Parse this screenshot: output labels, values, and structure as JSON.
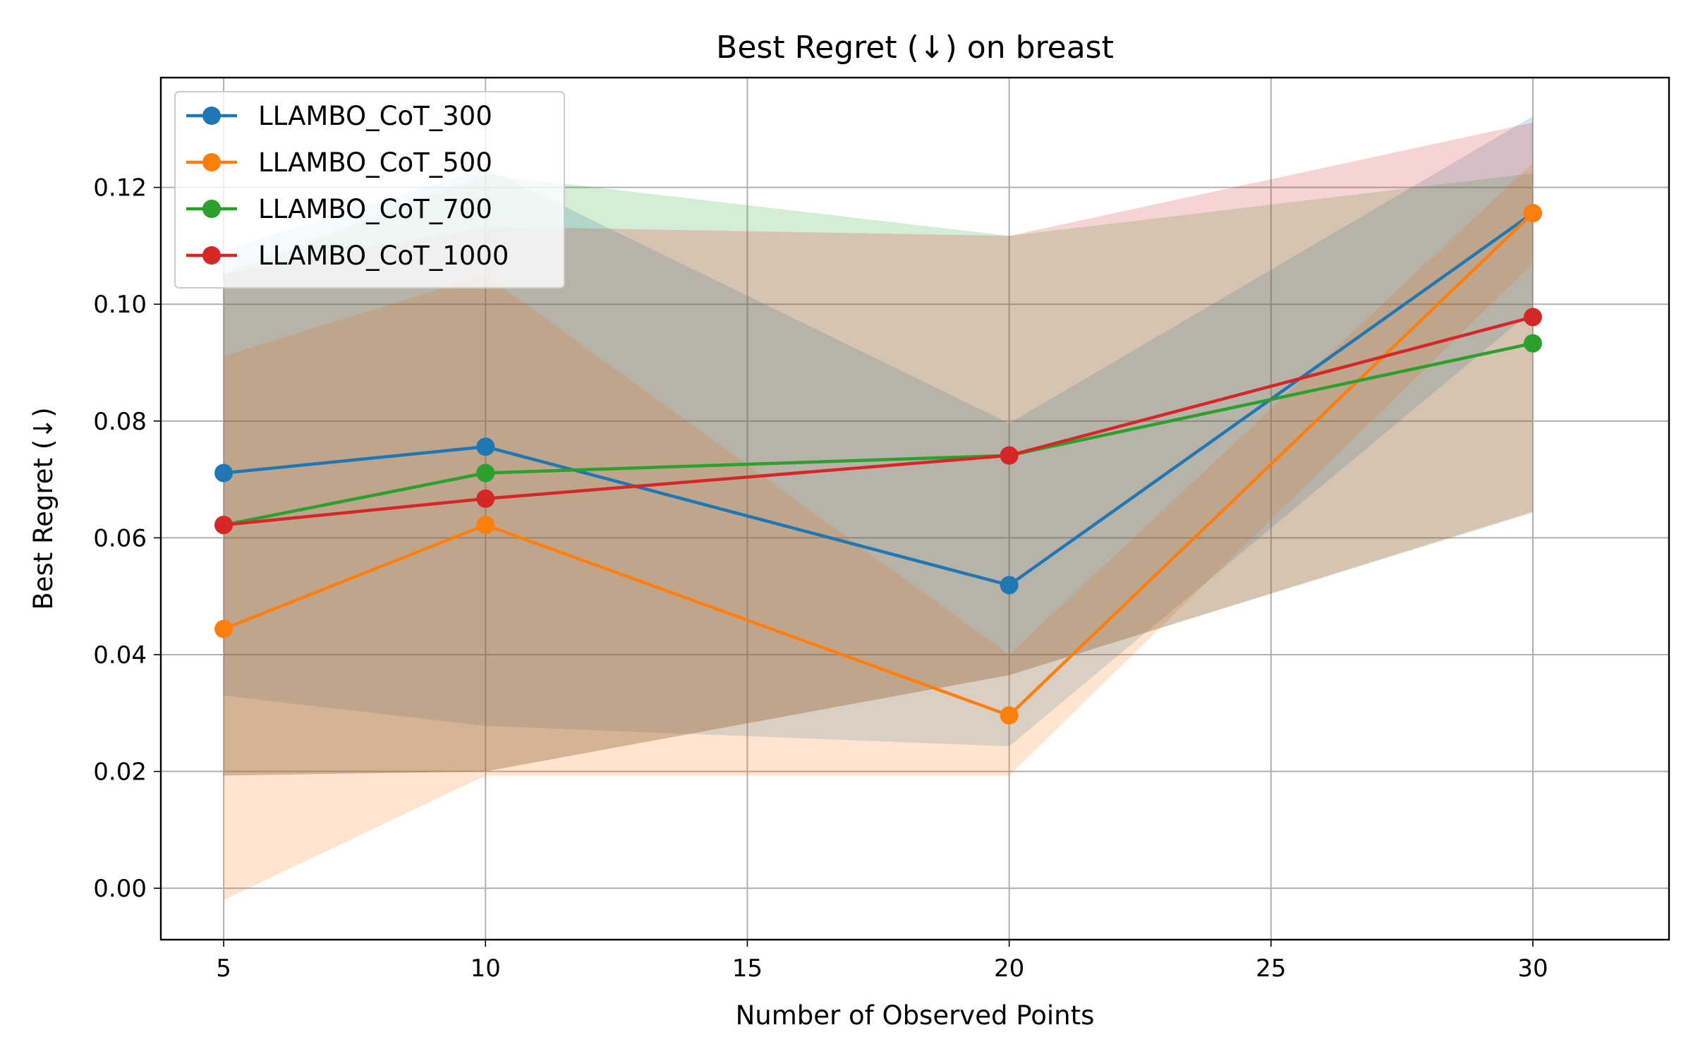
{
  "chart_data": {
    "type": "line",
    "title": "Best Regret (↓) on breast",
    "xlabel": "Number of Observed Points",
    "ylabel": "Best Regret (↓)",
    "xlim": [
      3.8,
      32.6
    ],
    "ylim": [
      -0.0088,
      0.1388
    ],
    "x_ticks": [
      5,
      10,
      15,
      20,
      25,
      30
    ],
    "y_ticks": [
      0.0,
      0.02,
      0.04,
      0.06,
      0.08,
      0.1,
      0.12
    ],
    "x_tick_labels": [
      "5",
      "10",
      "15",
      "20",
      "25",
      "30"
    ],
    "y_tick_labels": [
      "0.00",
      "0.02",
      "0.04",
      "0.06",
      "0.08",
      "0.10",
      "0.12"
    ],
    "grid": true,
    "legend_position": "upper-left",
    "x": [
      5,
      10,
      20,
      30
    ],
    "series": [
      {
        "name": "LLAMBO_CoT_300",
        "color": "#1f77b4",
        "values": [
          0.0711,
          0.0756,
          0.0519,
          0.1156
        ],
        "band_lower": [
          0.033,
          0.0278,
          0.0243,
          0.099
        ],
        "band_upper": [
          0.1092,
          0.1233,
          0.0796,
          0.1322
        ]
      },
      {
        "name": "LLAMBO_CoT_500",
        "color": "#ff7f0e",
        "values": [
          0.0444,
          0.0622,
          0.0296,
          0.1156
        ],
        "band_lower": [
          -0.002,
          0.0193,
          0.0193,
          0.107
        ],
        "band_upper": [
          0.0911,
          0.105,
          0.04,
          0.1242
        ]
      },
      {
        "name": "LLAMBO_CoT_700",
        "color": "#2ca02c",
        "values": [
          0.0622,
          0.0711,
          0.0741,
          0.0933
        ],
        "band_lower": [
          0.0193,
          0.02,
          0.0365,
          0.0643
        ],
        "band_upper": [
          0.1052,
          0.1222,
          0.1117,
          0.1224
        ]
      },
      {
        "name": "LLAMBO_CoT_1000",
        "color": "#d62728",
        "values": [
          0.0622,
          0.0667,
          0.0741,
          0.0978
        ],
        "band_lower": [
          0.0193,
          0.02,
          0.0365,
          0.0645
        ],
        "band_upper": [
          0.1052,
          0.1133,
          0.1117,
          0.1311
        ]
      }
    ]
  }
}
